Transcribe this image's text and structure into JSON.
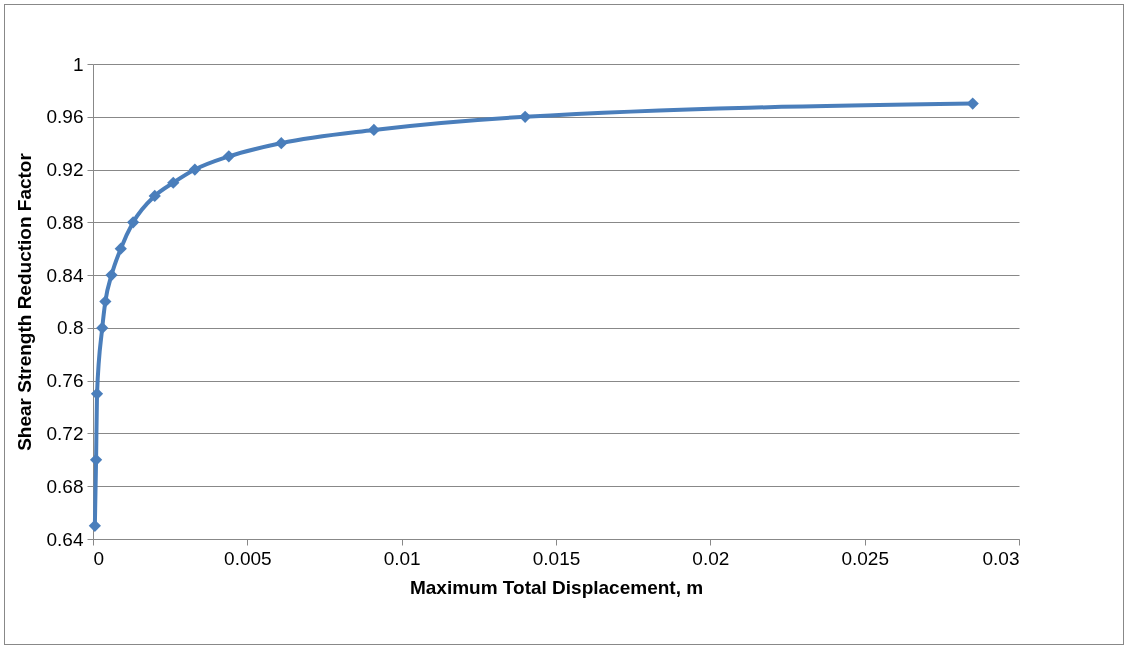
{
  "chart_data": {
    "type": "line",
    "xlabel": "Maximum Total Displacement, m",
    "ylabel": "Shear Strength Reduction Factor",
    "x": [
      6e-05,
      0.0001,
      0.00013,
      0.0003,
      0.0004,
      0.0006,
      0.0009,
      0.0013,
      0.002,
      0.0026,
      0.0033,
      0.0044,
      0.0061,
      0.0091,
      0.014,
      0.0285
    ],
    "series": [
      {
        "color": "#4a7ebb",
        "values": [
          0.65,
          0.7,
          0.75,
          0.8,
          0.82,
          0.84,
          0.86,
          0.88,
          0.9,
          0.91,
          0.92,
          0.93,
          0.94,
          0.95,
          0.96,
          0.97
        ]
      }
    ],
    "xlim": [
      0,
      0.03
    ],
    "xticks": [
      0,
      0.005,
      0.01,
      0.015,
      0.02,
      0.025,
      0.03
    ],
    "ylim": [
      0.64,
      1.0
    ],
    "yticks": [
      0.64,
      0.68,
      0.72,
      0.76,
      0.8,
      0.84,
      0.88,
      0.92,
      0.96,
      1
    ],
    "grid": "y",
    "marker": "diamond",
    "line_style": "solid"
  }
}
